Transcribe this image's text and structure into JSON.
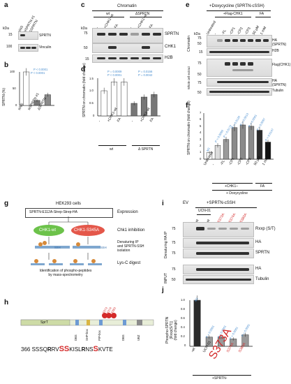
{
  "panels": {
    "a": {
      "letter": "a",
      "kda": "kDa",
      "m1": "15",
      "m2": "100",
      "lanes": [
        "siNS",
        "siSPRTN #1",
        "ΔSPRTN"
      ],
      "rows": [
        "SPRTN",
        "Vinculin"
      ]
    },
    "b": {
      "letter": "b",
      "ylabel": "SPRTN (%)",
      "yticks": [
        "100",
        "50",
        "0"
      ],
      "p1": "P < 0.0001",
      "p2": "P < 0.0001"
    },
    "c": {
      "letter": "c",
      "header": "Chromatin",
      "g1": "wt",
      "g2": "ΔSPRTN",
      "kda": "kDa",
      "m1": "75",
      "m2": "50",
      "m3": "15",
      "lanes": [
        "-",
        "+CHK1-wt",
        "FA",
        "-",
        "+CHK1-wt",
        "FA"
      ],
      "rows": [
        "SPRTN",
        "CHK1",
        "H2B"
      ]
    },
    "d": {
      "letter": "d",
      "ylabel": "SPRTN on chromatin\n(fold change)",
      "yticks": [
        "1.5",
        "1.0",
        "0.5",
        "0"
      ],
      "p1": "P = 0.0009",
      "p2": "P < 0.0001",
      "p3": "P = 0.0156",
      "p4": "P = 0.0042",
      "g1": "wt",
      "g2": "Δ SPRTN",
      "xlabels": [
        "-",
        "+CHK1-wt",
        "FA",
        "-",
        "+CHK1-wt",
        "FA"
      ]
    },
    "e": {
      "letter": "e",
      "header": "+Doxycycline (SPRTN-cSSH)",
      "flag": "+Flag-CHK1",
      "fa": "FA",
      "lanes": [
        "Untreated",
        "-",
        "-FL",
        "-CP1",
        "-CP2",
        "-CP3",
        "50 µM",
        "1 mM"
      ],
      "kda": "kDa",
      "m1": "75",
      "m2": "50",
      "m3": "15",
      "m4": "75",
      "m5": "50",
      "m6": "75",
      "m7": "50",
      "side1": "Chromatin",
      "side2": "Whole cell extract",
      "rows": [
        "HA (SPRTN)",
        "H2B",
        "Flag(CHK1)",
        "HA (SPRTN)",
        "Tubulin"
      ]
    },
    "f": {
      "letter": "f",
      "ylabel": "SPRTN on chromatin\n(fold change)",
      "yticks": [
        "7",
        "6",
        "5",
        "4",
        "3",
        "2",
        "1",
        "0"
      ],
      "ns": "NS",
      "pvals": [
        "P = 0.0093",
        "P = 0.0172",
        "P = 0.0120",
        "P = 0.0013",
        "P = 0.0001",
        "P = 0.0097",
        "P = 0.0147"
      ],
      "xlabels": [
        "Untreated",
        "-",
        "-FL",
        "-CP1",
        "-CP2",
        "-CP3",
        "50 µM",
        "1 mM"
      ],
      "grp1": "+CHK1–",
      "grp2": "FA",
      "grp3": "+ Doxycycline"
    },
    "g": {
      "letter": "g",
      "title": "HEK293 cells",
      "box": "SPRTN-E112A-Strep-Strep-HA",
      "step1": "Expression",
      "ck1": "CHK1-wt",
      "ck2": "CHK1-S345A",
      "step2": "Chk1 inhibition",
      "ssh": "SSH",
      "step3": "Denaturing IP\nand SPRTN-SSH\nisolation",
      "step4": "Lys-C digest",
      "bottom": "Identification of phospho-peptides\nby mass-spectrometry"
    },
    "h": {
      "letter": "h",
      "domain1": "SprT",
      "sites": [
        "S373",
        "S374",
        "S383"
      ],
      "labels": [
        "DBS",
        "SHP-box",
        "PIP-box",
        "DBS",
        "UBZ"
      ],
      "seq_num": "366",
      "seq": [
        [
          "SSSQ",
          0
        ],
        [
          "R",
          1
        ],
        [
          "RV",
          0
        ],
        [
          "SS",
          2
        ],
        [
          "KISL",
          0
        ],
        [
          "R",
          1
        ],
        [
          "NS",
          0
        ],
        [
          "S",
          2
        ],
        [
          "KVTE",
          0
        ]
      ]
    },
    "i": {
      "letter": "i",
      "ev": "EV",
      "header": "+SPRTN-cSSH",
      "ucn": "UCN-01",
      "lanes": [
        "-",
        "-wt",
        "-wt",
        "-S373A",
        "-S374A",
        "-S383A"
      ],
      "side1": "Denaturing HA IP",
      "side2": "INPUT",
      "m1": "75",
      "m2": "75",
      "m3": "75",
      "m4": "75",
      "m5": "50",
      "rows": [
        "Rxxp (S/T)",
        "HA",
        "SPRTN",
        "HA",
        "Tubulin"
      ]
    },
    "j": {
      "letter": "j",
      "ylabel": "Phospho-SPRTN\n[Rxxp(S/T)]\n(fold change)",
      "yticks": [
        "1.0",
        "0.8",
        "0.6",
        "0.4",
        "0.2",
        "0"
      ],
      "ns": "NS",
      "pvals": [
        "P < 0.0001",
        "P < 0.0001",
        "P < 0.0001",
        "P < 0.0001"
      ],
      "xlabels": [
        "-wt",
        "UCN-01",
        "S373A",
        "S374A",
        "S383A"
      ],
      "bottom": "+SPRTN-"
    }
  },
  "chart_data": [
    {
      "type": "bar",
      "panel": "b",
      "categories": [
        "siNS",
        "siSPRTN #1",
        "ΔSPRTN"
      ],
      "values": [
        100,
        15,
        32
      ],
      "ylim": [
        0,
        100
      ],
      "ylabel": "SPRTN (%)"
    },
    {
      "type": "bar",
      "panel": "d",
      "categories": [
        "wt -",
        "wt +CHK1-wt",
        "wt FA",
        "ΔSPRTN -",
        "ΔSPRTN +CHK1-wt",
        "ΔSPRTN FA"
      ],
      "values": [
        1.0,
        1.35,
        1.35,
        0.5,
        0.75,
        0.85
      ],
      "ylim": [
        0,
        1.5
      ],
      "ylabel": "SPRTN on chromatin (fold change)"
    },
    {
      "type": "bar",
      "panel": "f",
      "categories": [
        "Untreated",
        "-",
        "-FL",
        "-CP1",
        "-CP2",
        "-CP3",
        "50 µM",
        "1 mM"
      ],
      "values": [
        1.0,
        2.1,
        3.0,
        4.8,
        5.2,
        5.0,
        4.4,
        2.6
      ],
      "ylim": [
        0,
        7
      ],
      "ylabel": "SPRTN on chromatin (fold change)"
    },
    {
      "type": "bar",
      "panel": "j",
      "categories": [
        "-wt",
        "UCN-01",
        "S373A",
        "S374A",
        "S383A"
      ],
      "values": [
        1.0,
        0.2,
        0.2,
        0.16,
        0.25
      ],
      "ylim": [
        0,
        1.0
      ],
      "ylabel": "Phospho-SPRTN [Rxxp(S/T)] (fold change)"
    }
  ]
}
